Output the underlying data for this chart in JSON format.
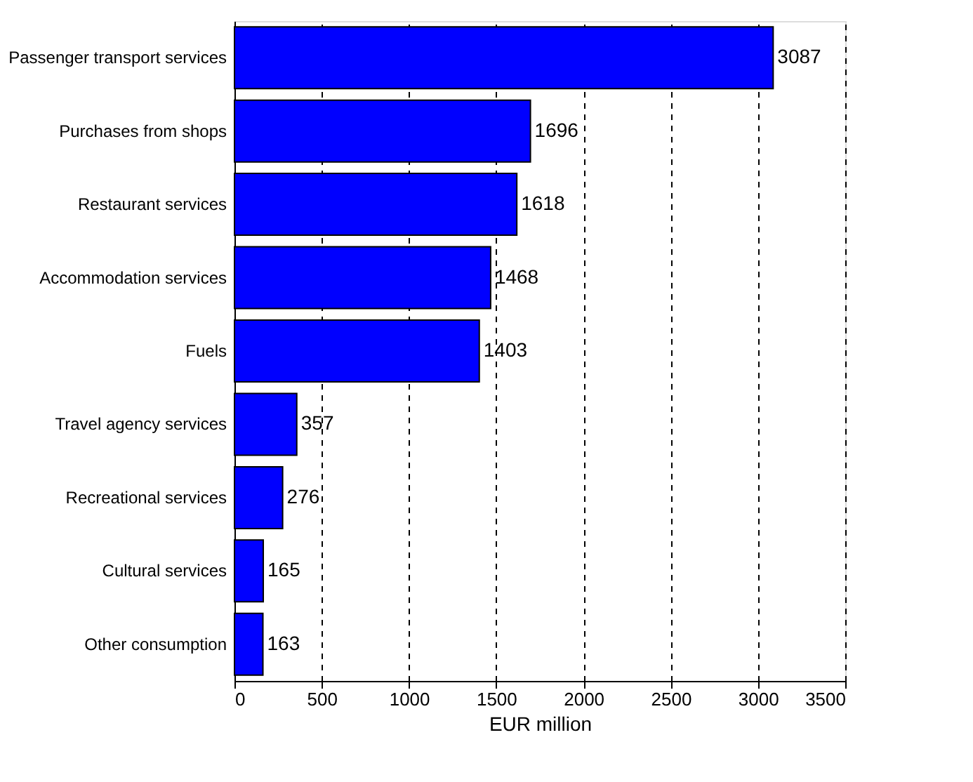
{
  "chart_data": {
    "type": "bar",
    "orientation": "horizontal",
    "xlabel": "EUR million",
    "categories": [
      "Passenger transport services",
      "Purchases from shops",
      "Restaurant services",
      "Accommodation services",
      "Fuels",
      "Travel agency services",
      "Recreational services",
      "Cultural services",
      "Other consumption"
    ],
    "values": [
      3087,
      1696,
      1618,
      1468,
      1403,
      357,
      276,
      165,
      163
    ],
    "color": "#0000ff",
    "xlim": [
      0,
      3500
    ],
    "xticks": [
      0,
      500,
      1000,
      1500,
      2000,
      2500,
      3000,
      3500
    ],
    "grid": "x",
    "data_labels": true
  }
}
